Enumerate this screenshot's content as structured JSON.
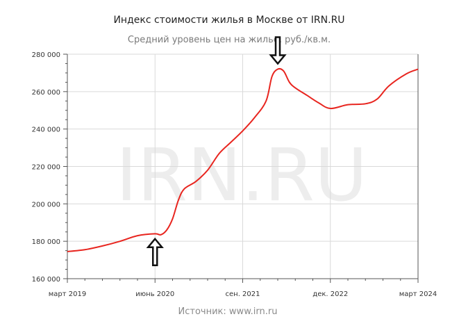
{
  "chart_data": {
    "type": "line",
    "title": "Индекс стоимости жилья в Москве от IRN.RU",
    "subtitle": "Средний уровень цен на жилье, руб./кв.м.",
    "xlabel": "",
    "ylabel": "",
    "source": "Источник: www.irn.ru",
    "watermark": "IRN.RU",
    "x_tick_labels": [
      "март 2019",
      "июнь 2020",
      "сен. 2021",
      "дек. 2022",
      "март 2024"
    ],
    "y_tick_labels": [
      "160 000",
      "180 000",
      "200 000",
      "220 000",
      "240 000",
      "260 000",
      "280 000"
    ],
    "ylim": [
      160000,
      280000
    ],
    "grid": true,
    "line_color": "#e8251f",
    "series": [
      {
        "x": [
          "2019-03",
          "2019-06",
          "2019-09",
          "2019-12",
          "2020-03",
          "2020-06",
          "2020-07",
          "2020-08",
          "2020-09",
          "2020-10",
          "2020-11",
          "2021-01",
          "2021-03",
          "2021-05",
          "2021-07",
          "2021-09",
          "2021-11",
          "2022-01",
          "2022-02",
          "2022-03",
          "2022-04",
          "2022-05",
          "2022-06",
          "2022-08",
          "2022-10",
          "2022-12",
          "2023-03",
          "2023-06",
          "2023-08",
          "2023-10",
          "2024-01",
          "2024-03"
        ],
        "values": [
          174500,
          175500,
          177500,
          180000,
          183000,
          184000,
          183500,
          186000,
          192000,
          202000,
          208000,
          212000,
          218000,
          227000,
          233000,
          239000,
          246000,
          255000,
          268000,
          272000,
          271000,
          265000,
          262000,
          258000,
          254000,
          251000,
          253000,
          253500,
          256000,
          263000,
          269500,
          272000
        ]
      }
    ]
  },
  "annotations": [
    {
      "name": "arrow-up-june-2020",
      "direction": "up",
      "x": "2020-06",
      "y": 183500
    },
    {
      "name": "arrow-down-peak-2022",
      "direction": "down",
      "x": "2022-03",
      "y": 272000
    }
  ]
}
